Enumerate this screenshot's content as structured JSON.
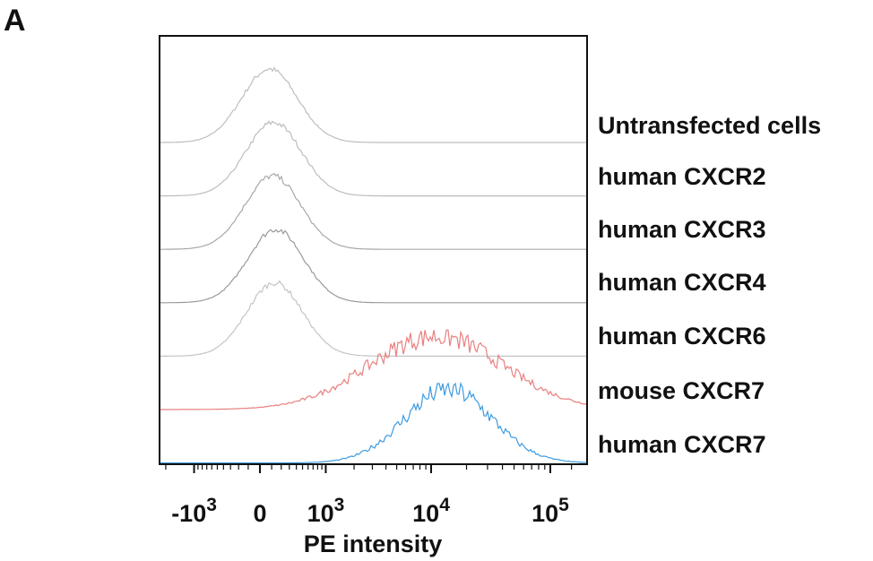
{
  "panel_letter": "A",
  "chart_data": {
    "type": "histogram-overlay",
    "xlabel": "PE intensity",
    "x_scale": "biexponential",
    "xlim": [
      -2500,
      150000
    ],
    "x_ticks": [
      {
        "value": -1000,
        "base": "-10",
        "exp": "3"
      },
      {
        "value": 0,
        "base": "0",
        "exp": ""
      },
      {
        "value": 1000,
        "base": "10",
        "exp": "3"
      },
      {
        "value": 10000,
        "base": "10",
        "exp": "4"
      },
      {
        "value": 100000,
        "base": "10",
        "exp": "5"
      }
    ],
    "series": [
      {
        "name": "Untransfected cells",
        "color": "#bdbdbd",
        "peak_x": 80,
        "spread": 0.23,
        "noisy": false
      },
      {
        "name": "human CXCR2",
        "color": "#bdbdbd",
        "peak_x": 120,
        "spread": 0.23,
        "noisy": false
      },
      {
        "name": "human CXCR3",
        "color": "#a8a8a8",
        "peak_x": 110,
        "spread": 0.23,
        "noisy": false
      },
      {
        "name": "human CXCR4",
        "color": "#9a9a9a",
        "peak_x": 140,
        "spread": 0.23,
        "noisy": false
      },
      {
        "name": "human CXCR6",
        "color": "#c4c4c4",
        "peak_x": 130,
        "spread": 0.23,
        "noisy": false
      },
      {
        "name": "mouse CXCR7",
        "color": "#e88080",
        "peak_x": 11000,
        "spread": 0.55,
        "noisy": true
      },
      {
        "name": "human CXCR7",
        "color": "#3d9be0",
        "peak_x": 14000,
        "spread": 0.36,
        "noisy": true
      }
    ]
  }
}
